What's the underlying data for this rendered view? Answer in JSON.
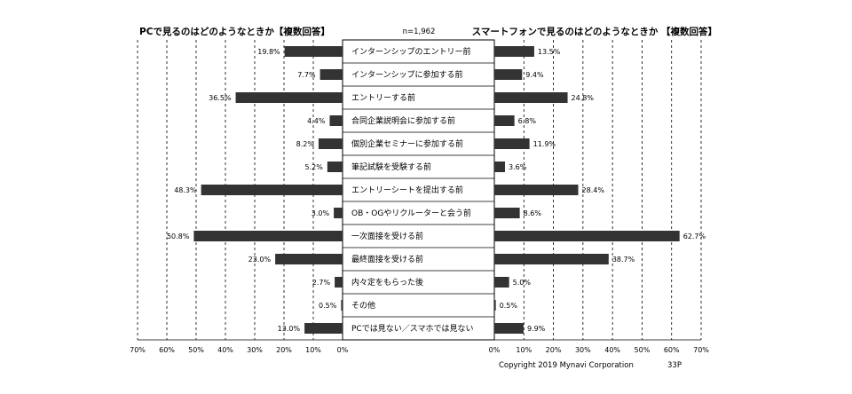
{
  "chart_data": {
    "type": "bar",
    "left_title": "PCで見るのはどのようなときか【複数回答】",
    "right_title": "スマートフォンで見るのはどのようなときか 【複数回答】",
    "sample_note": "n=1,962",
    "categories": [
      "インターンシップのエントリー前",
      "インターンシップに参加する前",
      "エントリーする前",
      "合同企業説明会に参加する前",
      "個別企業セミナーに参加する前",
      "筆記試験を受験する前",
      "エントリーシートを提出する前",
      "OB・OGやリクルーターと会う前",
      "一次面接を受ける前",
      "最終面接を受ける前",
      "内々定をもらった後",
      "その他",
      "PCでは見ない／スマホでは見ない"
    ],
    "series": [
      {
        "values": [
          19.8,
          7.7,
          36.5,
          4.4,
          8.2,
          5.2,
          48.3,
          3.0,
          50.8,
          23.0,
          2.7,
          0.5,
          13.0
        ],
        "labels": [
          "19.8%",
          "7.7%",
          "36.5%",
          "4.4%",
          "8.2%",
          "5.2%",
          "48.3%",
          "3.0%",
          "50.8%",
          "23.0%",
          "2.7%",
          "0.5%",
          "13.0%"
        ]
      },
      {
        "values": [
          13.5,
          9.4,
          24.8,
          6.8,
          11.9,
          3.6,
          28.4,
          8.6,
          62.7,
          38.7,
          5.0,
          0.5,
          9.9
        ],
        "labels": [
          "13.5%",
          "9.4%",
          "24.8%",
          "6.8%",
          "11.9%",
          "3.6%",
          "28.4%",
          "8.6%",
          "62.7%",
          "38.7%",
          "5.0%",
          "0.5%",
          "9.9%"
        ]
      }
    ],
    "left_ticks": [
      "70%",
      "60%",
      "50%",
      "40%",
      "30%",
      "20%",
      "10%",
      "0%"
    ],
    "right_ticks": [
      "0%",
      "10%",
      "20%",
      "30%",
      "40%",
      "50%",
      "60%",
      "70%"
    ],
    "xlim": [
      0,
      70
    ],
    "grid": true,
    "bar_color": "#333333"
  },
  "footer": {
    "copyright": "Copyright 2019  Mynavi Corporation",
    "page": "33P"
  }
}
